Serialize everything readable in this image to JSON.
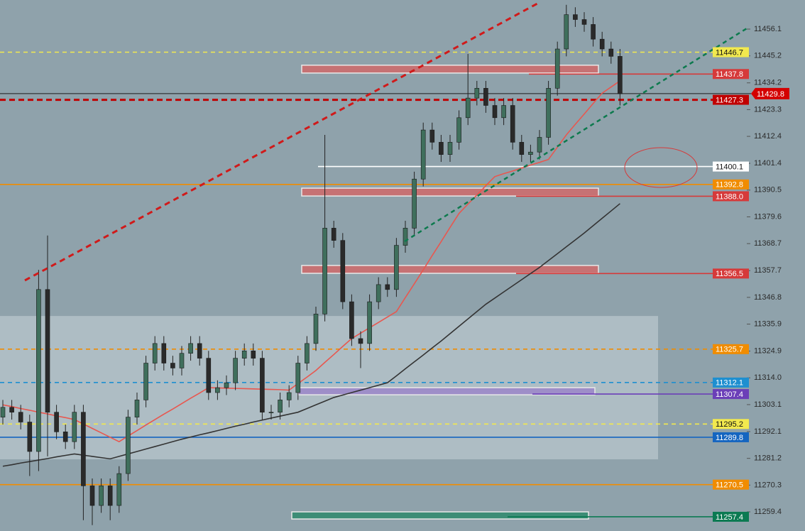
{
  "chart_data": {
    "type": "candlestick",
    "open": [
      11298,
      11302,
      11300,
      11296,
      11284,
      11350,
      11300,
      11292,
      11288,
      11300,
      11270,
      11262,
      11270,
      11262,
      11275,
      11298,
      11305,
      11320,
      11328,
      11320,
      11318,
      11324,
      11328,
      11322,
      11308,
      11310,
      11312,
      11322,
      11325,
      11322,
      11300,
      11300,
      11305,
      11308,
      11320,
      11328,
      11340,
      11375,
      11370,
      11345,
      11330,
      11328,
      11345,
      11352,
      11350,
      11368,
      11375,
      11395,
      11415,
      11410,
      11405,
      11410,
      11420,
      11428,
      11432,
      11425,
      11420,
      11425,
      11410,
      11405,
      11406,
      11412,
      11432,
      11448,
      11462,
      11460,
      11458,
      11452,
      11448,
      11445
    ],
    "high": [
      11305,
      11305,
      11303,
      11299,
      11358,
      11372,
      11303,
      11295,
      11303,
      11303,
      11273,
      11273,
      11273,
      11278,
      11301,
      11308,
      11323,
      11331,
      11331,
      11323,
      11327,
      11331,
      11331,
      11325,
      11313,
      11315,
      11325,
      11328,
      11328,
      11325,
      11303,
      11308,
      11311,
      11323,
      11331,
      11343,
      11413,
      11378,
      11373,
      11348,
      11333,
      11348,
      11355,
      11355,
      11371,
      11378,
      11398,
      11418,
      11418,
      11413,
      11413,
      11423,
      11446,
      11435,
      11435,
      11428,
      11428,
      11428,
      11413,
      11409,
      11415,
      11435,
      11451,
      11466,
      11465,
      11463,
      11461,
      11455,
      11451,
      11448
    ],
    "low": [
      11295,
      11297,
      11293,
      11274,
      11276,
      11282,
      11289,
      11285,
      11285,
      11256,
      11254,
      11259,
      11256,
      11259,
      11272,
      11295,
      11302,
      11317,
      11317,
      11315,
      11315,
      11321,
      11319,
      11305,
      11305,
      11307,
      11309,
      11319,
      11319,
      11297,
      11297,
      11297,
      11302,
      11305,
      11317,
      11325,
      11337,
      11367,
      11342,
      11327,
      11318,
      11325,
      11342,
      11347,
      11347,
      11365,
      11372,
      11392,
      11407,
      11402,
      11402,
      11407,
      11417,
      11425,
      11422,
      11417,
      11417,
      11407,
      11402,
      11402,
      11403,
      11409,
      11429,
      11445,
      11457,
      11455,
      11449,
      11445,
      11442,
      11425
    ],
    "close": [
      11302,
      11300,
      11296,
      11284,
      11350,
      11300,
      11292,
      11288,
      11300,
      11270,
      11262,
      11270,
      11262,
      11275,
      11298,
      11305,
      11320,
      11328,
      11320,
      11318,
      11324,
      11328,
      11322,
      11308,
      11310,
      11312,
      11322,
      11325,
      11322,
      11300,
      11300,
      11305,
      11308,
      11320,
      11328,
      11340,
      11375,
      11370,
      11345,
      11330,
      11328,
      11345,
      11352,
      11350,
      11368,
      11375,
      11395,
      11415,
      11410,
      11405,
      11410,
      11420,
      11428,
      11432,
      11425,
      11420,
      11425,
      11410,
      11405,
      11406,
      11412,
      11432,
      11448,
      11462,
      11460,
      11458,
      11452,
      11448,
      11445,
      11429.8
    ],
    "up_color": "#3f6f5c",
    "down_color": "#2a2a2a",
    "lines": [
      {
        "color": "#e8574f",
        "values": [
          11303,
          11302.3,
          11301.5,
          11300.8,
          11300,
          11299.3,
          11298.5,
          11297.8,
          11297,
          11295.2,
          11293.4,
          11291.6,
          11289.8,
          11288,
          11290.3,
          11292.5,
          11294.8,
          11297,
          11299.2,
          11301.3,
          11303.5,
          11305.7,
          11307.8,
          11310,
          11309.9,
          11309.8,
          11309.7,
          11309.6,
          11309.5,
          11309.4,
          11309.3,
          11309.2,
          11309,
          11311.7,
          11314.3,
          11317,
          11320.3,
          11323.5,
          11326.8,
          11330,
          11332.2,
          11334.4,
          11336.6,
          11338.8,
          11341,
          11346.7,
          11352.3,
          11358,
          11363.8,
          11369.5,
          11375.3,
          11381,
          11384.8,
          11388.5,
          11392.3,
          11396,
          11397.2,
          11398.3,
          11399.5,
          11400.7,
          11401.8,
          11403,
          11408,
          11413,
          11417.3,
          11421.5,
          11425.8,
          11430,
          11432.5,
          11435
        ]
      },
      {
        "color": "#333333",
        "values": [
          11278,
          11278.6,
          11279.3,
          11279.9,
          11280.5,
          11281.1,
          11281.8,
          11282.4,
          11283,
          11282.5,
          11282,
          11281.5,
          11281,
          11282,
          11283,
          11284,
          11285,
          11286,
          11287,
          11288,
          11289,
          11289.9,
          11290.8,
          11291.6,
          11292.5,
          11293.4,
          11294.3,
          11295.1,
          11296,
          11296.8,
          11297.6,
          11298.4,
          11299.2,
          11300,
          11301.5,
          11303,
          11304.5,
          11306,
          11307,
          11308,
          11309,
          11310,
          11311,
          11312,
          11314.8,
          11317.7,
          11320.5,
          11323.3,
          11326.2,
          11329,
          11332,
          11335,
          11338,
          11341,
          11344,
          11346.5,
          11349,
          11351.5,
          11354,
          11356.5,
          11359,
          11361.8,
          11364.6,
          11367.4,
          11370.2,
          11373,
          11376,
          11379,
          11382,
          11385
        ]
      }
    ],
    "ylim": [
      11251.6,
      11467.96
    ],
    "yticks": [
      11456.1,
      11445.2,
      11434.2,
      11423.3,
      11412.4,
      11401.4,
      11390.5,
      11379.6,
      11368.7,
      11357.7,
      11346.8,
      11335.9,
      11324.9,
      {
        "value": 11314,
        "label": "11314.0"
      },
      11303.1,
      11292.1,
      11281.2,
      11270.3,
      11259.4
    ],
    "levels": [
      {
        "price": 11446.7,
        "color": "#f2e94e",
        "style": "dashed"
      },
      {
        "price": 11437.8,
        "color": "#d63a3a",
        "style": "solid"
      },
      {
        "price": 11429.8,
        "color": "#d40000",
        "style": "solid",
        "current": true
      },
      {
        "price": 11427.3,
        "color": "#c00000",
        "style": "dashed"
      },
      {
        "price": 11400.1,
        "color": "#ffffff",
        "style": "solid"
      },
      {
        "price": 11392.8,
        "color": "#f08c00",
        "style": "solid"
      },
      {
        "price": {
          "value": 11388,
          "label": "11388.0"
        },
        "color": "#d63a3a",
        "style": "solid"
      },
      {
        "price": 11356.5,
        "color": "#d63a3a",
        "style": "solid"
      },
      {
        "price": 11325.7,
        "color": "#f08c00",
        "style": "dashed"
      },
      {
        "price": 11312.1,
        "color": "#1e8fd0",
        "style": "dashed"
      },
      {
        "price": 11307.4,
        "color": "#6b3fb8",
        "style": "solid"
      },
      {
        "price": 11295.2,
        "color": "#f2e94e",
        "style": "dashed"
      },
      {
        "price": 11289.8,
        "color": "#1565c0",
        "style": "solid"
      },
      {
        "price": 11270.5,
        "color": "#f08c00",
        "style": "solid"
      },
      {
        "price": 11257.4,
        "color": "#0b7a52",
        "style": "solid"
      }
    ],
    "zones": [
      {
        "low": 11280.8,
        "high": 11339.2,
        "color": "#c8d3d8"
      },
      {
        "low": 11438.2,
        "high": 11441.4,
        "color": "#d06a6a"
      },
      {
        "low": 11388.1,
        "high": 11391.3,
        "color": "#d06a6a"
      },
      {
        "low": 11356.6,
        "high": 11359.8,
        "color": "#d06a6a"
      },
      {
        "low": 11307.1,
        "high": 11310,
        "color": "#9b86c9"
      },
      {
        "low": 11256.5,
        "high": 11259.4,
        "color": "#2f8a6c"
      }
    ]
  }
}
